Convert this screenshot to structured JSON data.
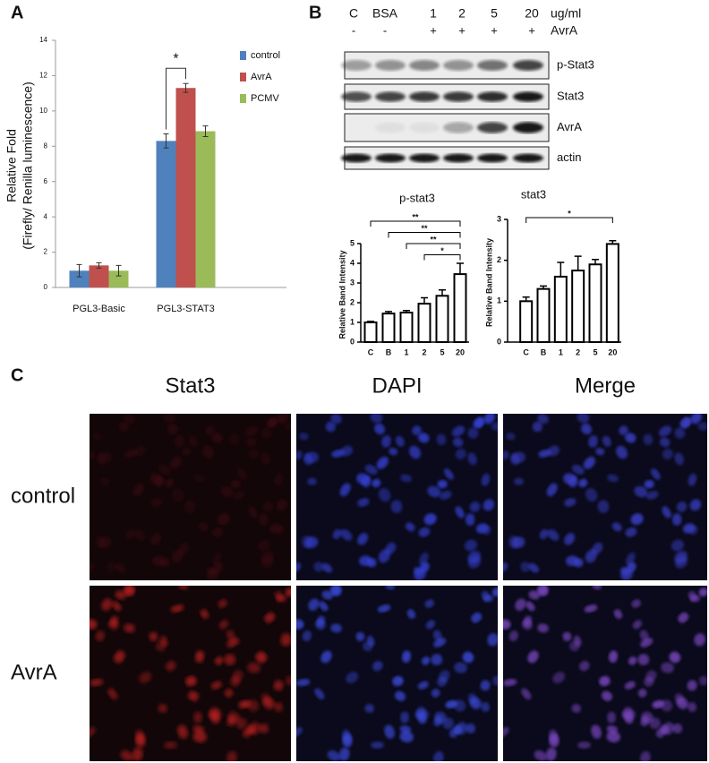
{
  "panels": {
    "a": "A",
    "b": "B",
    "c": "C"
  },
  "chart_data": [
    {
      "type": "bar",
      "ylabel": [
        "Relative Fold",
        "(Firefly/ Renilla luminescence)"
      ],
      "categories": [
        "PGL3-Basic",
        "PGL3-STAT3"
      ],
      "series": [
        {
          "name": "control",
          "color": "#4f81bd",
          "values": [
            0.95,
            8.3
          ],
          "errors": [
            0.35,
            0.4
          ]
        },
        {
          "name": "AvrA",
          "color": "#c0504d",
          "values": [
            1.25,
            11.3
          ],
          "errors": [
            0.15,
            0.25
          ]
        },
        {
          "name": "PCMV",
          "color": "#9bbb59",
          "values": [
            0.95,
            8.85
          ],
          "errors": [
            0.3,
            0.3
          ]
        }
      ],
      "ylim": [
        0,
        14
      ],
      "yticks": [
        0,
        2,
        4,
        6,
        8,
        10,
        12,
        14
      ],
      "significance": [
        {
          "category": "PGL3-STAT3",
          "groups": [
            "control",
            "AvrA"
          ],
          "label": "*"
        }
      ]
    },
    {
      "type": "bar",
      "title": "p-stat3",
      "ylabel": "Relative Band Intensity",
      "categories": [
        "C",
        "B",
        "1",
        "2",
        "5",
        "20"
      ],
      "values": [
        1.0,
        1.45,
        1.5,
        1.95,
        2.35,
        3.45
      ],
      "errors": [
        0.05,
        0.1,
        0.1,
        0.3,
        0.3,
        0.55
      ],
      "ylim": [
        0,
        5
      ],
      "yticks": [
        0,
        1,
        2,
        3,
        4,
        5
      ],
      "significance": [
        {
          "groups": [
            "C",
            "20"
          ],
          "label": "**"
        },
        {
          "groups": [
            "B",
            "20"
          ],
          "label": "**"
        },
        {
          "groups": [
            "1",
            "20"
          ],
          "label": "**"
        },
        {
          "groups": [
            "2",
            "20"
          ],
          "label": "*"
        }
      ]
    },
    {
      "type": "bar",
      "title": "stat3",
      "ylabel": "Relative Band Intensity",
      "categories": [
        "C",
        "B",
        "1",
        "2",
        "5",
        "20"
      ],
      "values": [
        1.0,
        1.3,
        1.6,
        1.75,
        1.9,
        2.4
      ],
      "errors": [
        0.1,
        0.07,
        0.35,
        0.35,
        0.12,
        0.08
      ],
      "ylim": [
        0,
        3
      ],
      "yticks": [
        0,
        1,
        2,
        3
      ],
      "significance": [
        {
          "groups": [
            "C",
            "20"
          ],
          "label": "*"
        }
      ]
    }
  ],
  "blot": {
    "lanes": [
      "C",
      "BSA",
      "1",
      "2",
      "5",
      "20"
    ],
    "unit": "ug/ml",
    "treatment": [
      "-",
      "-",
      "+",
      "+",
      "+",
      "+"
    ],
    "treatment_label": "AvrA",
    "rows": [
      "p-Stat3",
      "Stat3",
      "AvrA",
      "actin"
    ]
  },
  "microscopy": {
    "columns": [
      "Stat3",
      "DAPI",
      "Merge"
    ],
    "rows": [
      "control",
      "AvrA"
    ]
  }
}
